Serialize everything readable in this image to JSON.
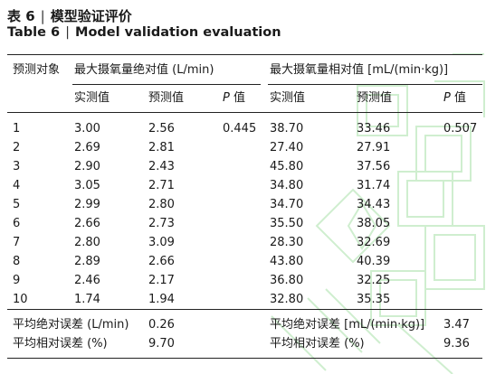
{
  "title": {
    "cn_label": "表 6",
    "separator": "|",
    "cn_text": "模型验证评价",
    "en_label": "Table 6",
    "en_text": "Model validation evaluation"
  },
  "headers": {
    "object": "预测对象",
    "abs_group": "最大摄氧量绝对值 (L/min)",
    "rel_group": "最大摄氧量相对值 [mL/(min·kg)]",
    "measured": "实测值",
    "predicted": "预测值",
    "p_letter": "P",
    "p_suffix": "值"
  },
  "rows": [
    {
      "id": "1",
      "abs_measured": "3.00",
      "abs_predicted": "2.56",
      "rel_measured": "38.70",
      "rel_predicted": "33.46"
    },
    {
      "id": "2",
      "abs_measured": "2.69",
      "abs_predicted": "2.81",
      "rel_measured": "27.40",
      "rel_predicted": "27.91"
    },
    {
      "id": "3",
      "abs_measured": "2.90",
      "abs_predicted": "2.43",
      "rel_measured": "45.80",
      "rel_predicted": "37.56"
    },
    {
      "id": "4",
      "abs_measured": "3.05",
      "abs_predicted": "2.71",
      "rel_measured": "34.80",
      "rel_predicted": "31.74"
    },
    {
      "id": "5",
      "abs_measured": "2.99",
      "abs_predicted": "2.80",
      "rel_measured": "34.70",
      "rel_predicted": "34.43"
    },
    {
      "id": "6",
      "abs_measured": "2.66",
      "abs_predicted": "2.73",
      "rel_measured": "35.50",
      "rel_predicted": "38.05"
    },
    {
      "id": "7",
      "abs_measured": "2.80",
      "abs_predicted": "3.09",
      "rel_measured": "28.30",
      "rel_predicted": "32.69"
    },
    {
      "id": "8",
      "abs_measured": "2.89",
      "abs_predicted": "2.66",
      "rel_measured": "43.80",
      "rel_predicted": "40.39"
    },
    {
      "id": "9",
      "abs_measured": "2.46",
      "abs_predicted": "2.17",
      "rel_measured": "36.80",
      "rel_predicted": "32.25"
    },
    {
      "id": "10",
      "abs_measured": "1.74",
      "abs_predicted": "1.94",
      "rel_measured": "32.80",
      "rel_predicted": "35.35"
    }
  ],
  "p_values": {
    "abs": "0.445",
    "rel": "0.507"
  },
  "summary": {
    "abs_mae_label": "平均绝对误差 (L/min)",
    "abs_mae_value": "0.26",
    "abs_mre_label": "平均相对误差 (%)",
    "abs_mre_value": "9.70",
    "rel_mae_label": "平均绝对误差 [mL/(min·kg)]",
    "rel_mae_value": "3.47",
    "rel_mre_label": "平均相对误差 (%)",
    "rel_mre_value": "9.36"
  },
  "colors": {
    "watermark": "#cfeecf",
    "rule": "#222222",
    "text": "#1a1a1a"
  }
}
